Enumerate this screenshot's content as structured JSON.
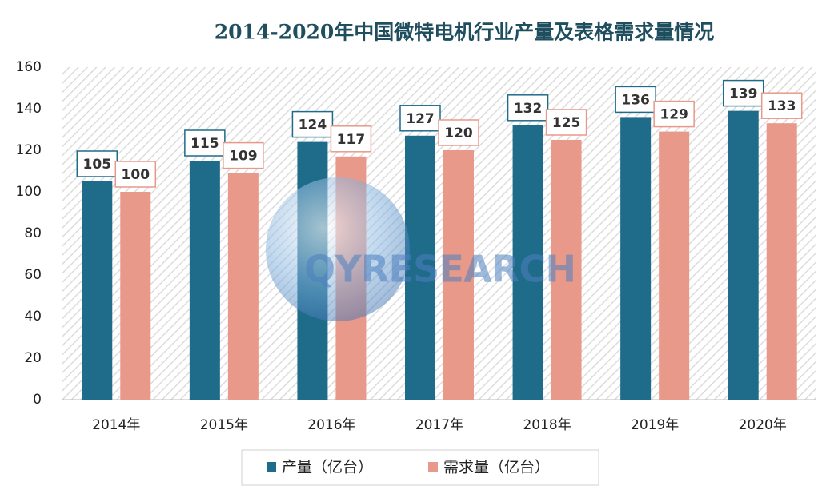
{
  "chart_data": {
    "type": "bar",
    "title": "2014-2020年中国微特电机行业产量及表格需求量情况",
    "categories": [
      "2014年",
      "2015年",
      "2016年",
      "2017年",
      "2018年",
      "2019年",
      "2020年"
    ],
    "series": [
      {
        "name": "产量（亿台）",
        "color": "#1f6b8a",
        "values": [
          105,
          115,
          124,
          127,
          132,
          136,
          139
        ]
      },
      {
        "name": "需求量（亿台）",
        "color": "#e8998a",
        "values": [
          100,
          109,
          117,
          120,
          125,
          129,
          133
        ]
      }
    ],
    "ylim": [
      0,
      160
    ],
    "yticks": [
      0,
      20,
      40,
      60,
      80,
      100,
      120,
      140,
      160
    ],
    "grid": false,
    "legend": "bottom",
    "watermark": "QYRESEARCH"
  }
}
